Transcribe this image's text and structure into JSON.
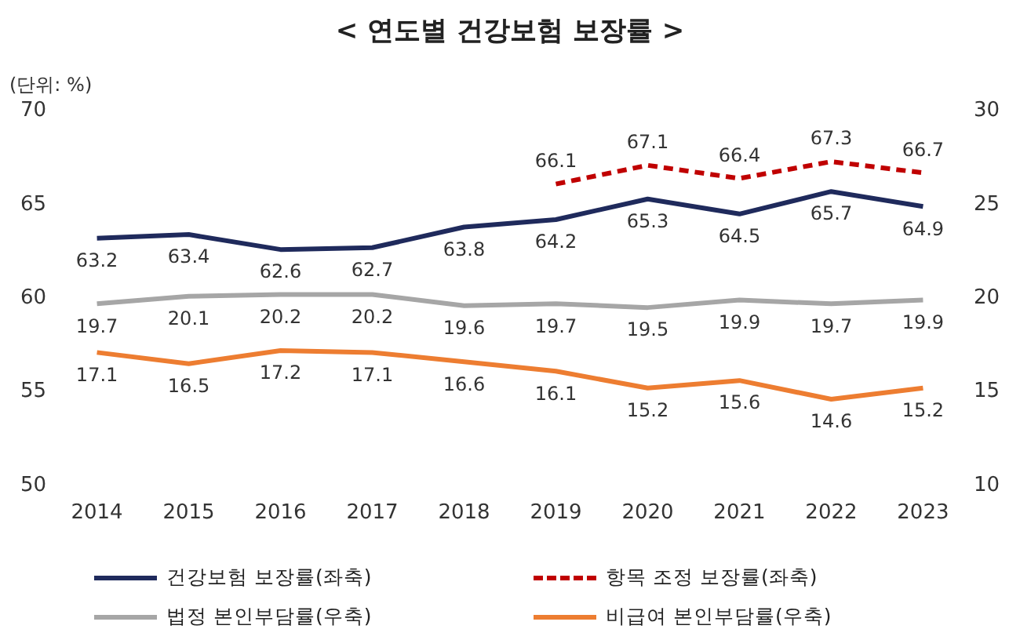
{
  "chart_data": {
    "type": "line",
    "title": "< 연도별 건강보험 보장률 >",
    "annotations": [
      "(단위: %)"
    ],
    "categories": [
      "2014",
      "2015",
      "2016",
      "2017",
      "2018",
      "2019",
      "2020",
      "2021",
      "2022",
      "2023"
    ],
    "series": [
      {
        "name": "건강보험 보장률(좌축)",
        "color": "#1f2a5c",
        "line_style": "solid",
        "values": [
          63.2,
          63.4,
          62.6,
          62.7,
          63.8,
          64.2,
          65.3,
          64.5,
          65.7,
          64.9
        ]
      },
      {
        "name": "항목 조정 보장률(좌축)",
        "color": "#c00000",
        "line_style": "dashed",
        "values": [
          null,
          null,
          null,
          null,
          null,
          66.1,
          67.1,
          66.4,
          67.3,
          66.7
        ]
      },
      {
        "name": "법정 본인부담률(우축)",
        "color": "#a6a6a6",
        "line_style": "solid",
        "axis": "y2",
        "values": [
          19.7,
          20.1,
          20.2,
          20.2,
          19.6,
          19.7,
          19.5,
          19.9,
          19.7,
          19.9
        ]
      },
      {
        "name": "비급여 본인부담률(우축)",
        "color": "#ed7d31",
        "line_style": "solid",
        "axis": "y2",
        "values": [
          17.1,
          16.5,
          17.2,
          17.1,
          16.6,
          16.1,
          15.2,
          15.6,
          14.6,
          15.2
        ]
      }
    ],
    "ylim": [
      50,
      70
    ],
    "yticks": [
      50,
      55,
      60,
      65,
      70
    ],
    "y2lim": [
      10,
      30
    ],
    "y2ticks": [
      10,
      15,
      20,
      25,
      30
    ],
    "data_labels": true,
    "grid": false,
    "legend": "bottom",
    "marker": "none"
  }
}
